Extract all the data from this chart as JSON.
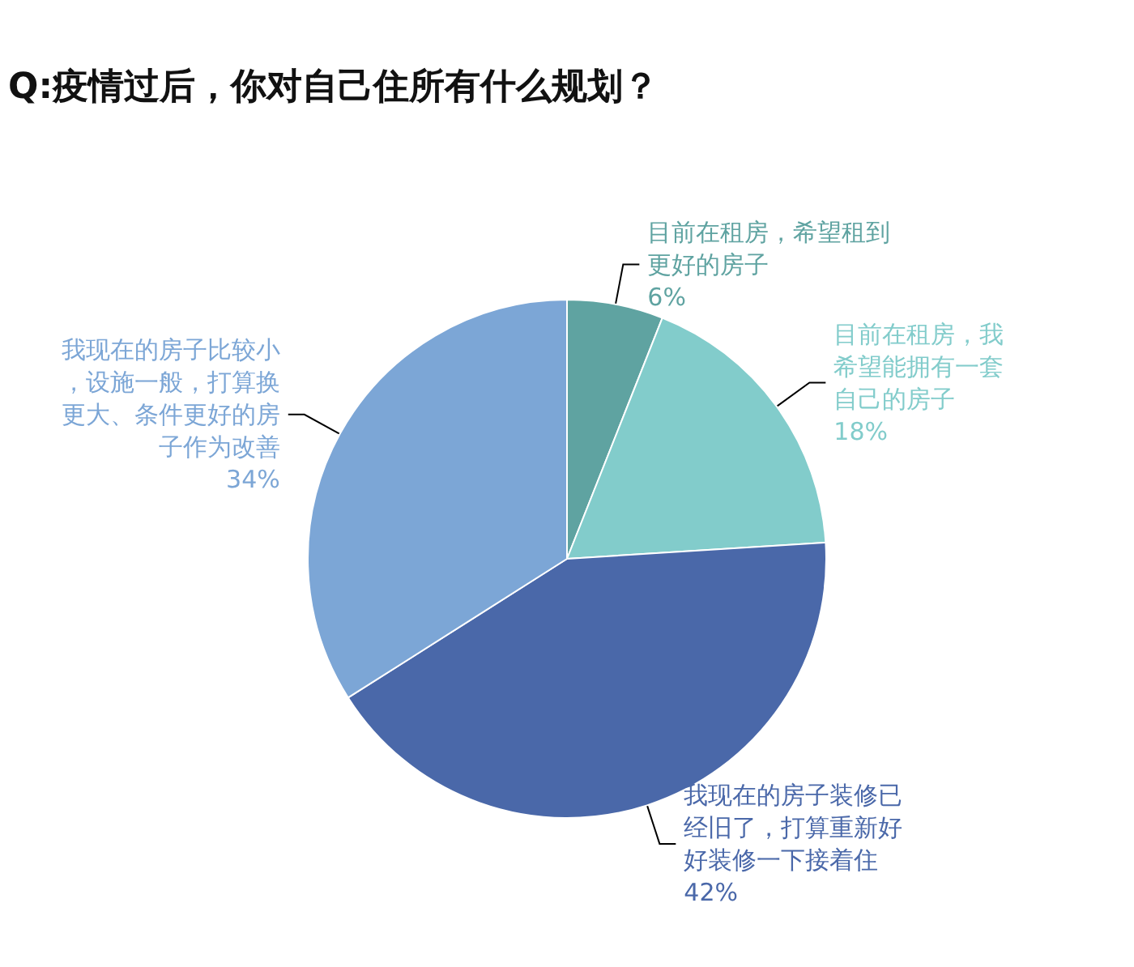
{
  "chart_data": {
    "type": "pie",
    "title": "Q:疫情过后，你对自己住所有什么规划？",
    "categories": [
      "目前在租房，希望租到更好的房子",
      "目前在租房，我希望能拥有一套自己的房子",
      "我现在的房子装修已经旧了，打算重新好好装修一下接着住",
      "我现在的房子比较小，设施一般，打算换更大、条件更好的房子作为改善"
    ],
    "values": [
      6,
      18,
      42,
      34
    ],
    "value_labels": [
      "6%",
      "18%",
      "42%",
      "34%"
    ],
    "colors": [
      "#5fa3a1",
      "#82cccb",
      "#4a68a9",
      "#7ca6d6"
    ]
  }
}
